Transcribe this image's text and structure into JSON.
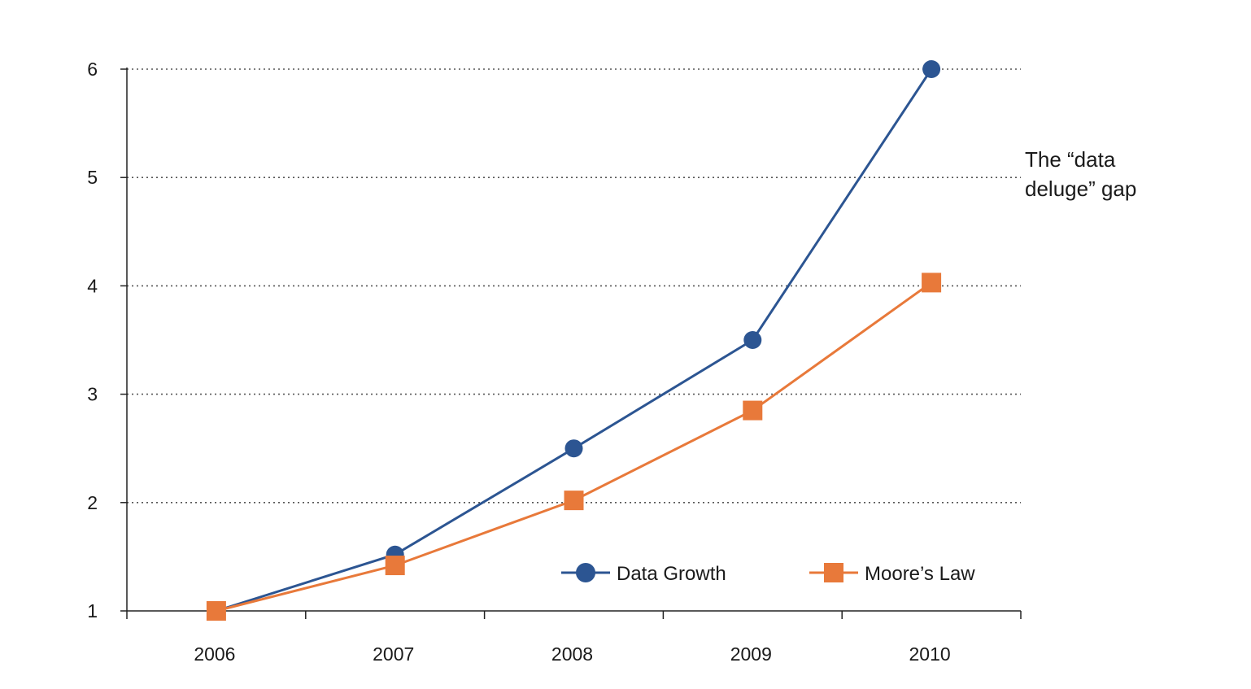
{
  "chart_data": {
    "type": "line",
    "categories": [
      "2006",
      "2007",
      "2008",
      "2009",
      "2010"
    ],
    "series": [
      {
        "name": "Data Growth",
        "values": [
          1.0,
          1.52,
          2.5,
          3.5,
          6.0
        ],
        "color": "#2c5592",
        "marker": "circle"
      },
      {
        "name": "Moore’s Law",
        "values": [
          1.0,
          1.42,
          2.02,
          2.85,
          4.03
        ],
        "color": "#e8793a",
        "marker": "square"
      }
    ],
    "y_ticks": [
      "1",
      "2",
      "3",
      "4",
      "5",
      "6"
    ],
    "ylim": [
      1,
      6
    ],
    "grid": "horizontal-dotted",
    "legend_position": "bottom-right",
    "annotation_lines": [
      "The “data",
      "deluge” gap"
    ],
    "title": "",
    "xlabel": "",
    "ylabel": ""
  }
}
